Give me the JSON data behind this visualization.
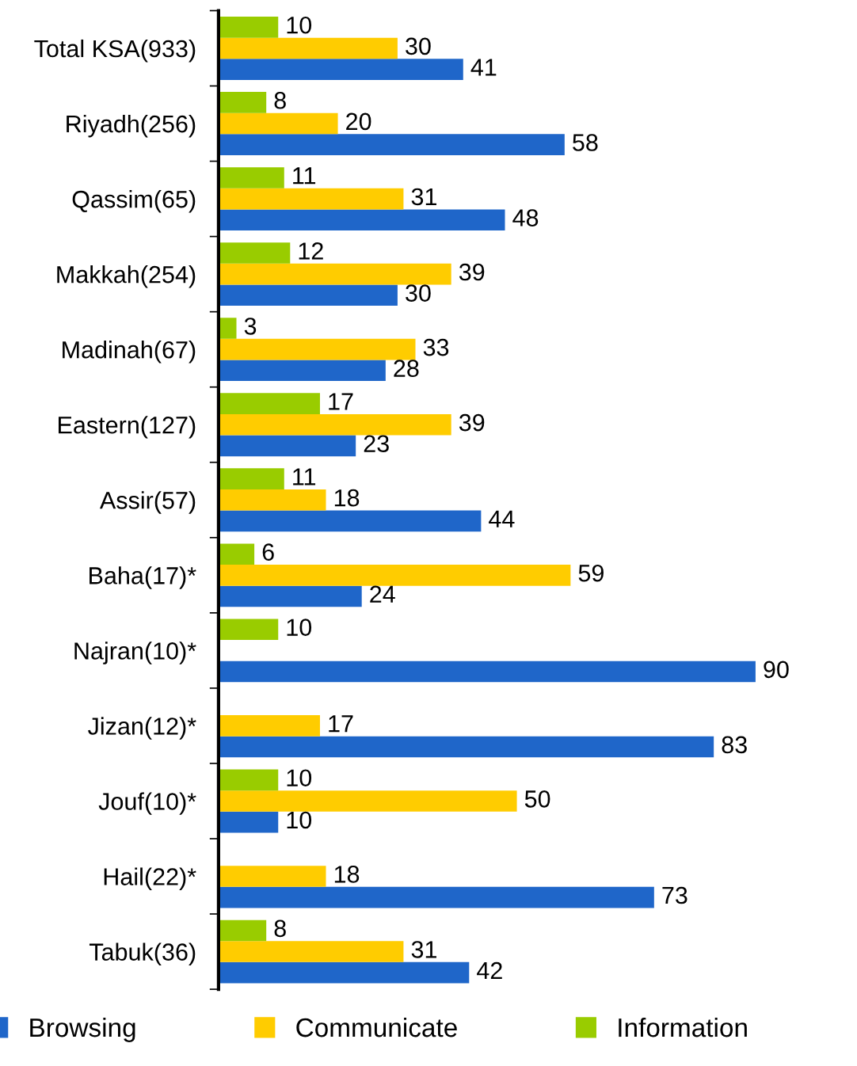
{
  "chart_data": {
    "type": "bar",
    "orientation": "horizontal",
    "data_labels": true,
    "legend": "bottom",
    "grid": false,
    "categories": [
      "Total KSA(933)",
      "Riyadh(256)",
      "Qassim(65)",
      "Makkah(254)",
      "Madinah(67)",
      "Eastern(127)",
      "Assir(57)",
      "Baha(17)*",
      "Najran(10)*",
      "Jizan(12)*",
      "Jouf(10)*",
      "Hail(22)*",
      "Tabuk(36)"
    ],
    "series": [
      {
        "name": "Browsing",
        "color": "#1f66c9",
        "values": [
          41,
          58,
          48,
          30,
          28,
          23,
          44,
          24,
          90,
          83,
          10,
          73,
          42
        ]
      },
      {
        "name": "Communicate",
        "color": "#ffcc00",
        "values": [
          30,
          20,
          31,
          39,
          33,
          39,
          18,
          59,
          null,
          17,
          50,
          18,
          31
        ]
      },
      {
        "name": "Information",
        "color": "#99cc00",
        "values": [
          10,
          8,
          11,
          12,
          3,
          17,
          11,
          6,
          10,
          null,
          10,
          null,
          8
        ]
      }
    ]
  }
}
